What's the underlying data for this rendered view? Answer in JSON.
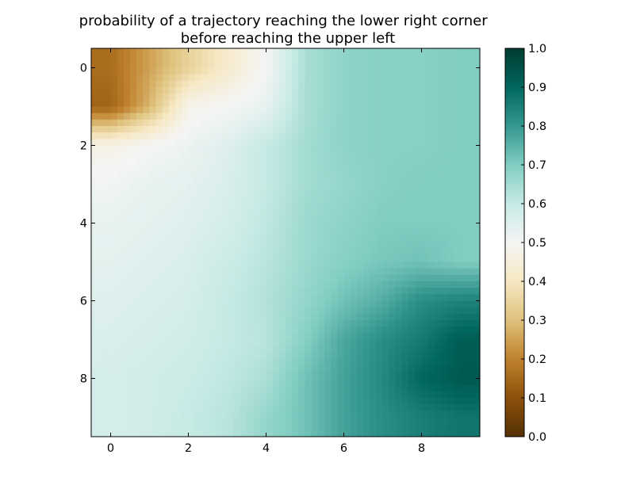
{
  "chart_data": {
    "type": "heatmap",
    "title": "probability of a trajectory reaching the lower right corner\nbefore reaching the upper left",
    "xlabel": "",
    "ylabel": "",
    "x_ticks": [
      0,
      2,
      4,
      6,
      8
    ],
    "y_ticks": [
      0,
      2,
      4,
      6,
      8
    ],
    "xlim": [
      -0.5,
      9.5
    ],
    "ylim": [
      9.5,
      -0.5
    ],
    "colormap": "BrBG",
    "colorbar": {
      "range": [
        0.0,
        1.0
      ],
      "ticks": [
        "0.0",
        "0.1",
        "0.2",
        "0.3",
        "0.4",
        "0.5",
        "0.6",
        "0.7",
        "0.8",
        "0.9",
        "1.0"
      ],
      "placement": "right"
    },
    "interpolation": "bilinear",
    "grid": false,
    "values": [
      [
        0.16,
        0.25,
        0.34,
        0.42,
        0.5,
        0.64,
        0.68,
        0.69,
        0.69,
        0.7
      ],
      [
        0.14,
        0.28,
        0.48,
        0.5,
        0.53,
        0.64,
        0.68,
        0.69,
        0.69,
        0.7
      ],
      [
        0.47,
        0.5,
        0.52,
        0.55,
        0.6,
        0.65,
        0.68,
        0.69,
        0.69,
        0.7
      ],
      [
        0.51,
        0.53,
        0.54,
        0.56,
        0.6,
        0.65,
        0.67,
        0.69,
        0.7,
        0.7
      ],
      [
        0.53,
        0.54,
        0.55,
        0.57,
        0.61,
        0.66,
        0.68,
        0.7,
        0.7,
        0.7
      ],
      [
        0.54,
        0.55,
        0.56,
        0.59,
        0.62,
        0.66,
        0.69,
        0.71,
        0.72,
        0.7
      ],
      [
        0.55,
        0.56,
        0.57,
        0.6,
        0.63,
        0.67,
        0.72,
        0.76,
        0.82,
        0.84
      ],
      [
        0.56,
        0.57,
        0.58,
        0.6,
        0.62,
        0.69,
        0.77,
        0.82,
        0.86,
        0.92
      ],
      [
        0.57,
        0.58,
        0.59,
        0.61,
        0.64,
        0.72,
        0.78,
        0.83,
        0.9,
        0.93
      ],
      [
        0.57,
        0.58,
        0.6,
        0.62,
        0.67,
        0.72,
        0.78,
        0.82,
        0.85,
        0.87
      ]
    ]
  }
}
